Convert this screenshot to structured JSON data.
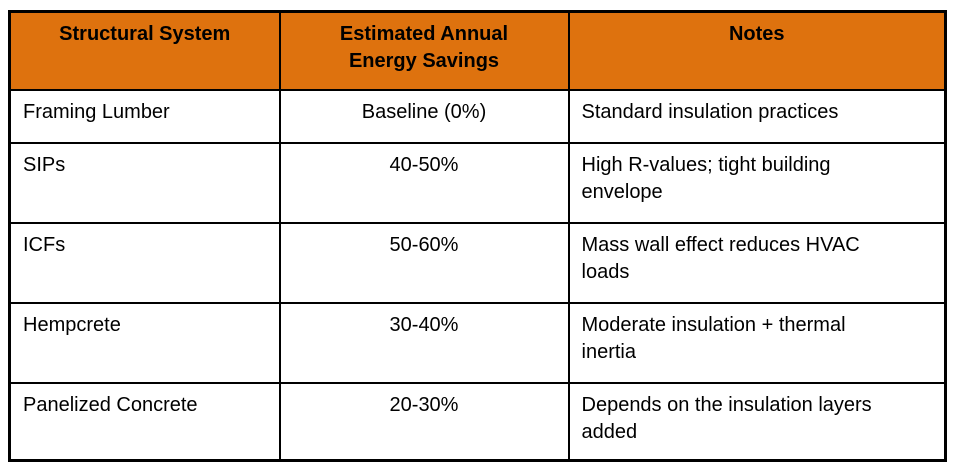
{
  "table": {
    "colors": {
      "header_bg": "#DE720E",
      "header_text": "#000000",
      "body_text": "#000000",
      "border": "#000000",
      "body_bg": "#FFFFFF"
    },
    "header": {
      "structural_system": "Structural System",
      "energy_savings": "Estimated Annual\nEnergy Savings",
      "notes": "Notes"
    },
    "rows": [
      {
        "system": "Framing Lumber",
        "savings": "Baseline (0%)",
        "notes": "Standard insulation practices"
      },
      {
        "system": "SIPs",
        "savings": "40-50%",
        "notes": "High R-values; tight building\nenvelope"
      },
      {
        "system": "ICFs",
        "savings": "50-60%",
        "notes": "Mass wall effect reduces HVAC\nloads"
      },
      {
        "system": "Hempcrete",
        "savings": "30-40%",
        "notes": "Moderate insulation + thermal\ninertia"
      },
      {
        "system": "Panelized Concrete",
        "savings": "20-30%",
        "notes": "Depends on the insulation layers\nadded"
      }
    ]
  }
}
